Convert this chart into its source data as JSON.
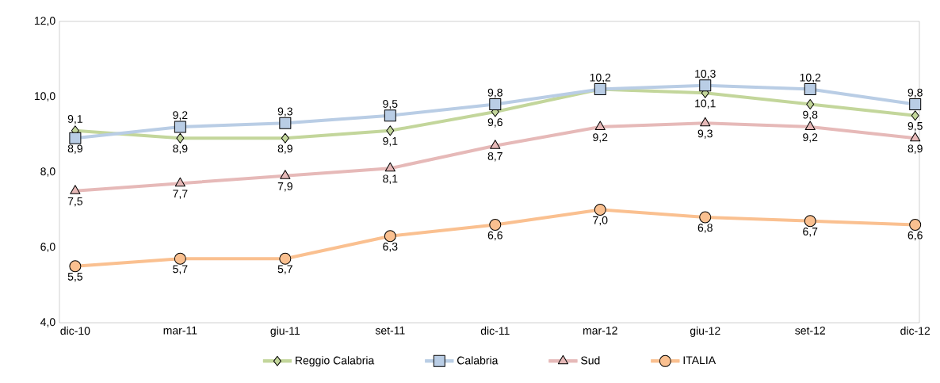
{
  "chart_data": {
    "type": "line",
    "categories": [
      "dic-10",
      "mar-11",
      "giu-11",
      "set-11",
      "dic-11",
      "mar-12",
      "giu-12",
      "set-12",
      "dic-12"
    ],
    "series": [
      {
        "name": "Reggio Calabria",
        "color": "#c3d69b",
        "marker": "diamond",
        "values": [
          9.1,
          8.9,
          8.9,
          9.1,
          9.6,
          10.2,
          10.1,
          9.8,
          9.5
        ],
        "value_labels": [
          "9,1",
          "8,9",
          "8,9",
          "9,1",
          "9,6",
          null,
          "10,1",
          "9,8",
          "9,5"
        ]
      },
      {
        "name": "Calabria",
        "color": "#b9cde5",
        "marker": "square",
        "values": [
          8.9,
          9.2,
          9.3,
          9.5,
          9.8,
          10.2,
          10.3,
          10.2,
          9.8
        ],
        "value_labels": [
          "8,9",
          "9,2",
          "9,3",
          "9,5",
          "9,8",
          "10,2",
          "10,3",
          "10,2",
          "9,8"
        ]
      },
      {
        "name": "Sud",
        "color": "#e6b9b8",
        "marker": "triangle",
        "values": [
          7.5,
          7.7,
          7.9,
          8.1,
          8.7,
          9.2,
          9.3,
          9.2,
          8.9
        ],
        "value_labels": [
          "7,5",
          "7,7",
          "7,9",
          "8,1",
          "8,7",
          "9,2",
          "9,3",
          "9,2",
          "8,9"
        ]
      },
      {
        "name": "ITALIA",
        "color": "#fac090",
        "marker": "circle",
        "values": [
          5.5,
          5.7,
          5.7,
          6.3,
          6.6,
          7.0,
          6.8,
          6.7,
          6.6
        ],
        "value_labels": [
          "5,5",
          "5,7",
          "5,7",
          "6,3",
          "6,6",
          "7,0",
          "6,8",
          "6,7",
          "6,6"
        ]
      }
    ],
    "ylim": [
      4,
      12
    ],
    "yticks": [
      {
        "value": 4,
        "label": "4,0"
      },
      {
        "value": 6,
        "label": "6,0"
      },
      {
        "value": 8,
        "label": "8,0"
      },
      {
        "value": 10,
        "label": "10,0"
      },
      {
        "value": 12,
        "label": "12,0"
      }
    ],
    "grid": false,
    "legend": "bottom"
  }
}
